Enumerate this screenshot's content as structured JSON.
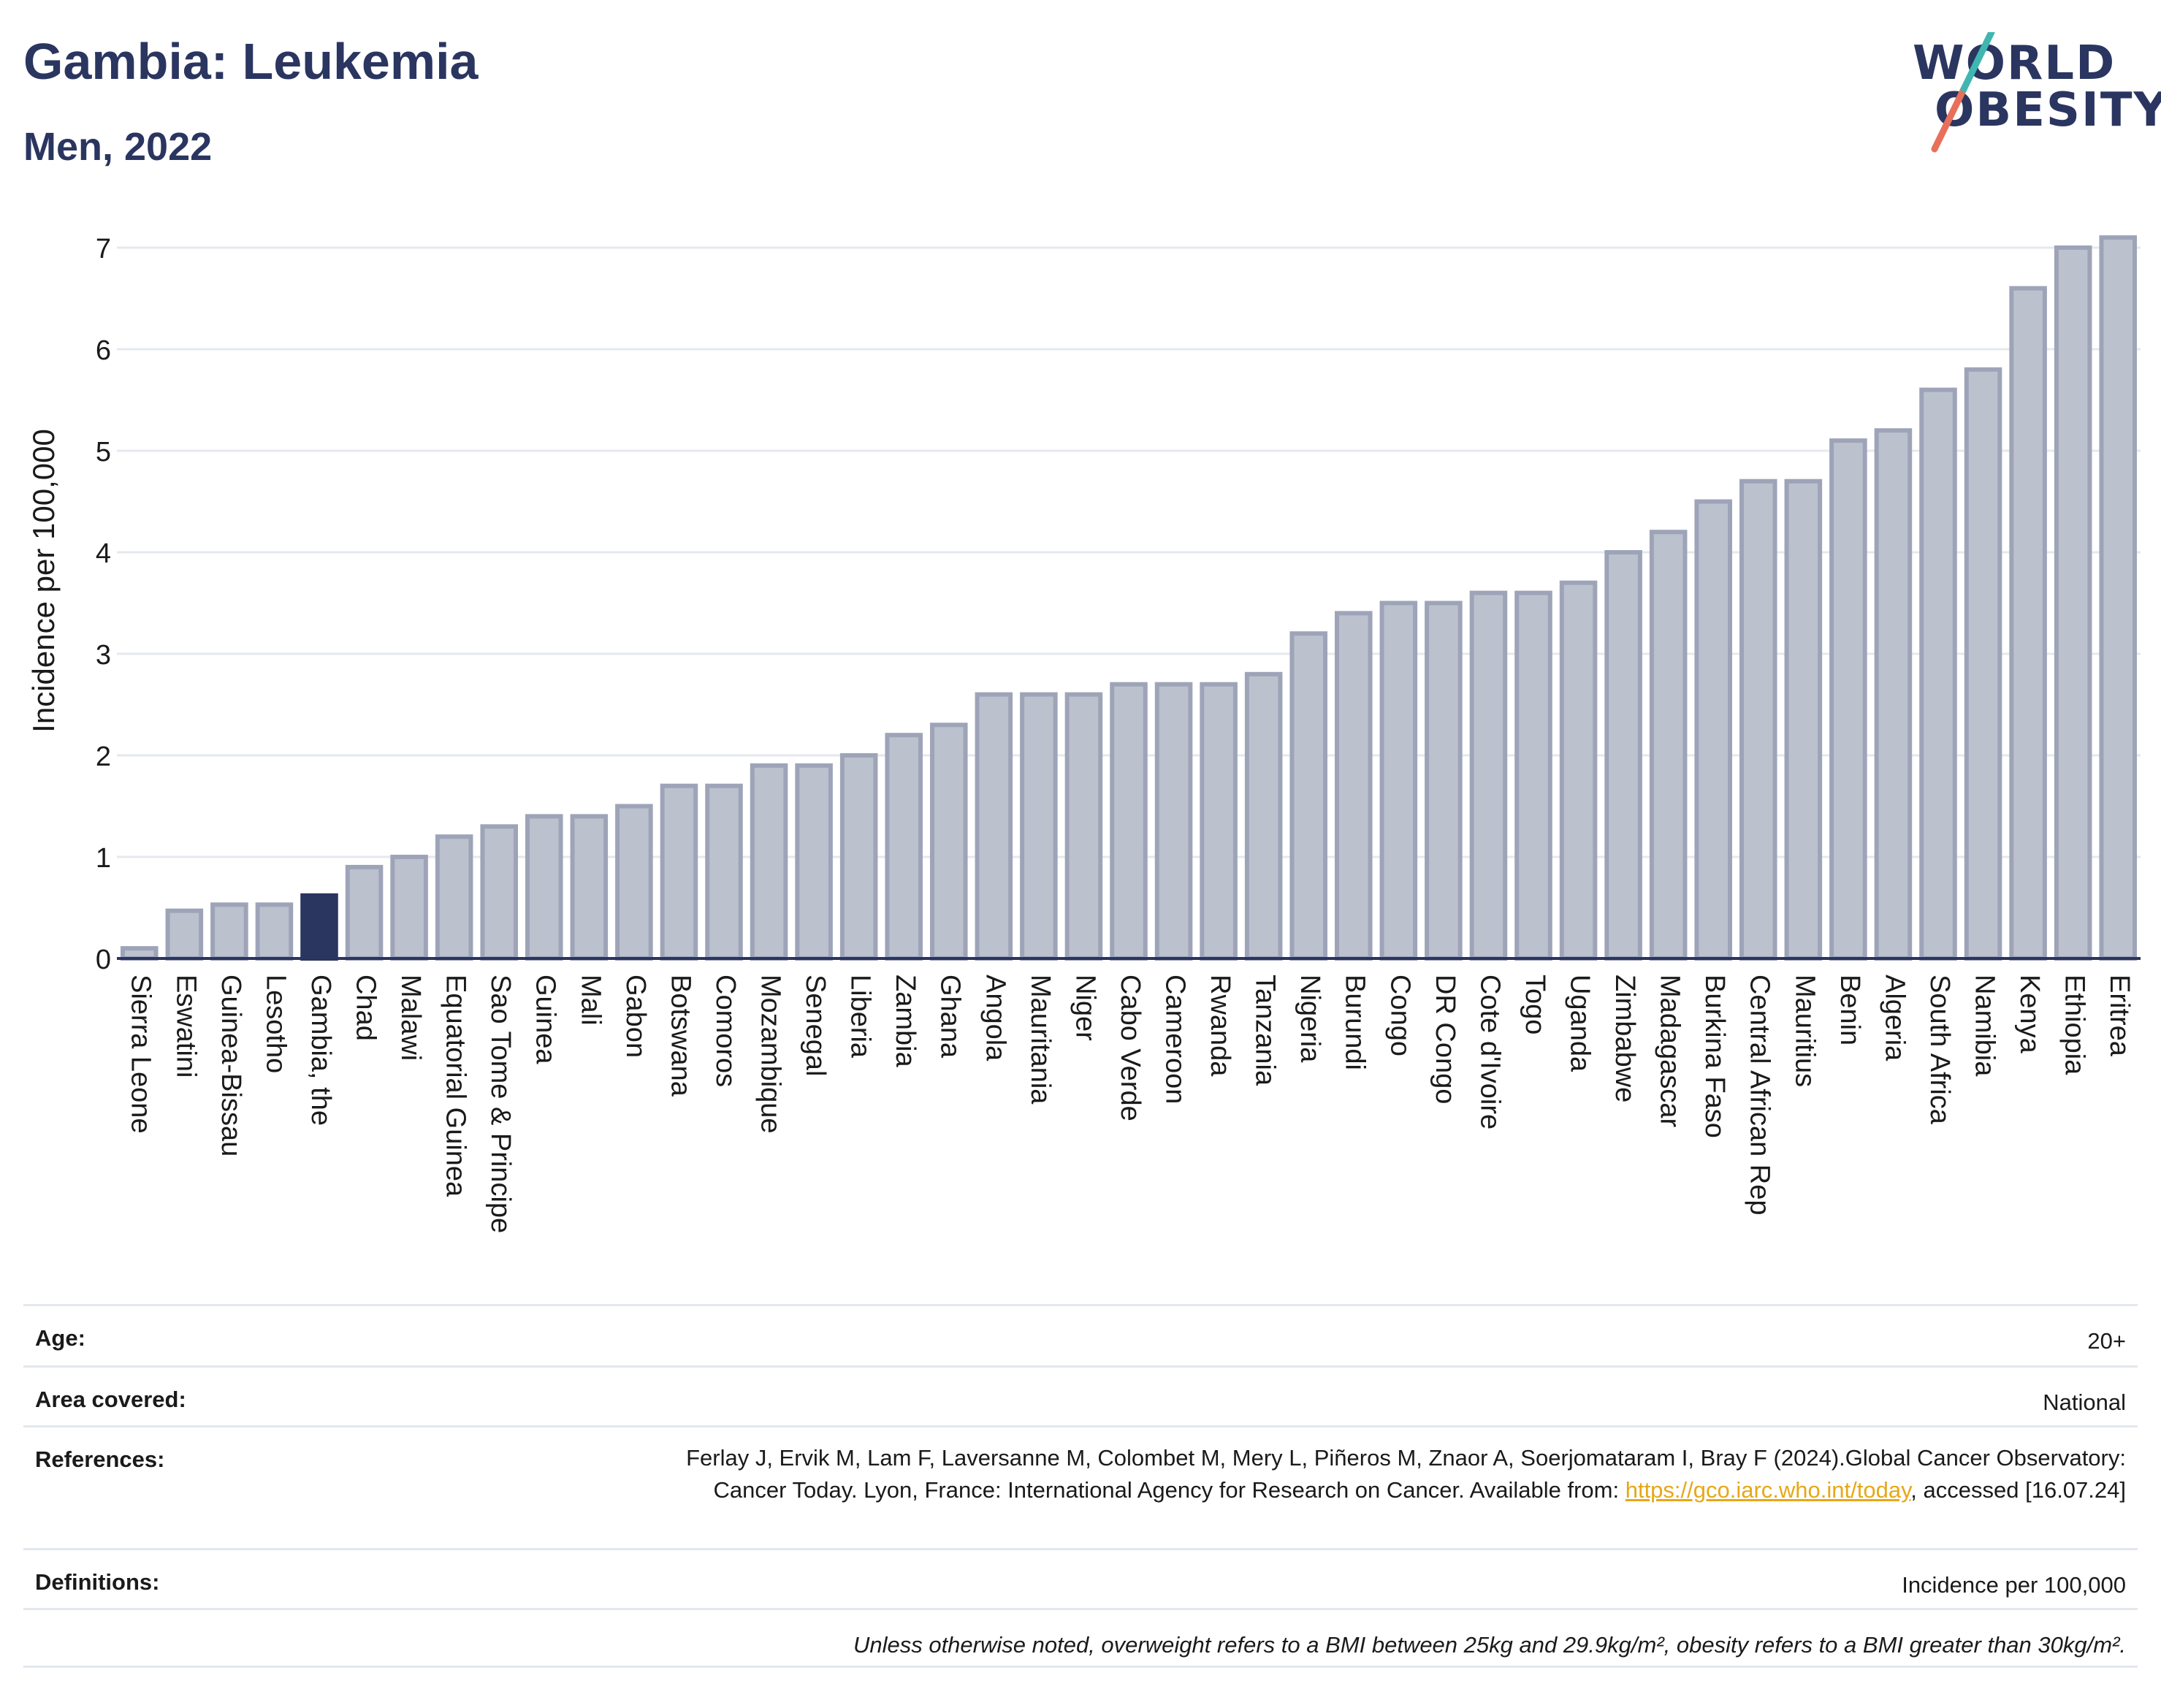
{
  "header": {
    "title": "Gambia: Leukemia",
    "subtitle": "Men, 2022"
  },
  "logo": {
    "line1": "WORLD",
    "line2": "OBESITY",
    "slash_colors": [
      "#e8705a",
      "#3fb6b0"
    ]
  },
  "colors": {
    "bar": "#bcc1ce",
    "bar_edge": "#9ea4b8",
    "highlight": "#2a3560",
    "grid": "#e5e8ee",
    "axis": "#2a3560",
    "link": "#e6a817"
  },
  "chart_data": {
    "type": "bar",
    "ylabel": "Incidence per 100,000",
    "xlabel": "",
    "ylim": [
      0,
      7.3
    ],
    "yticks": [
      0,
      1,
      2,
      3,
      4,
      5,
      6,
      7
    ],
    "grid": true,
    "highlight": "Gambia, the",
    "categories": [
      "Sierra Leone",
      "Eswatini",
      "Guinea-Bissau",
      "Lesotho",
      "Gambia, the",
      "Chad",
      "Malawi",
      "Equatorial Guinea",
      "Sao Tome & Principe",
      "Guinea",
      "Mali",
      "Gabon",
      "Botswana",
      "Comoros",
      "Mozambique",
      "Senegal",
      "Liberia",
      "Zambia",
      "Ghana",
      "Angola",
      "Mauritania",
      "Niger",
      "Cabo Verde",
      "Cameroon",
      "Rwanda",
      "Tanzania",
      "Nigeria",
      "Burundi",
      "Congo",
      "DR Congo",
      "Cote d'Ivoire",
      "Togo",
      "Uganda",
      "Zimbabwe",
      "Madagascar",
      "Burkina Faso",
      "Central African Rep",
      "Mauritius",
      "Benin",
      "Algeria",
      "South Africa",
      "Namibia",
      "Kenya",
      "Ethiopia",
      "Eritrea"
    ],
    "values": [
      0.1,
      0.47,
      0.53,
      0.53,
      0.62,
      0.9,
      1.0,
      1.2,
      1.3,
      1.4,
      1.4,
      1.5,
      1.7,
      1.7,
      1.9,
      1.9,
      2.0,
      2.2,
      2.3,
      2.6,
      2.6,
      2.6,
      2.7,
      2.7,
      2.7,
      2.8,
      3.2,
      3.4,
      3.5,
      3.5,
      3.6,
      3.6,
      3.7,
      4.0,
      4.2,
      4.5,
      4.7,
      4.7,
      5.1,
      5.2,
      5.6,
      5.8,
      6.6,
      7.0,
      7.1
    ]
  },
  "info": {
    "age": {
      "label": "Age:",
      "value": "20+"
    },
    "area": {
      "label": "Area covered:",
      "value": "National"
    },
    "references": {
      "label": "References:",
      "text_before": "Ferlay J, Ervik M, Lam F, Laversanne M, Colombet M, Mery L, Piñeros M, Znaor A, Soerjomataram I, Bray F (2024).Global Cancer Observatory: Cancer Today. Lyon, France: International Agency for Research on Cancer. Available from: ",
      "link": "https://gco.iarc.who.int/today",
      "text_after": ", accessed [16.07.24]"
    },
    "definitions": {
      "label": "Definitions:",
      "value": "Incidence per 100,000"
    },
    "note": "Unless otherwise noted, overweight refers to a BMI between 25kg and 29.9kg/m², obesity refers to a BMI greater than 30kg/m²."
  }
}
